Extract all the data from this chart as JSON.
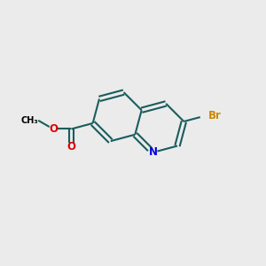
{
  "bg_color": "#ebebeb",
  "bond_color": "#1a5c5c",
  "bond_width": 1.5,
  "atom_colors": {
    "N": "#0000dd",
    "O": "#dd0000",
    "Br": "#cc8800",
    "C": "#000000"
  },
  "font_size_atom": 8.5,
  "figsize": [
    3.0,
    3.0
  ],
  "dpi": 100
}
